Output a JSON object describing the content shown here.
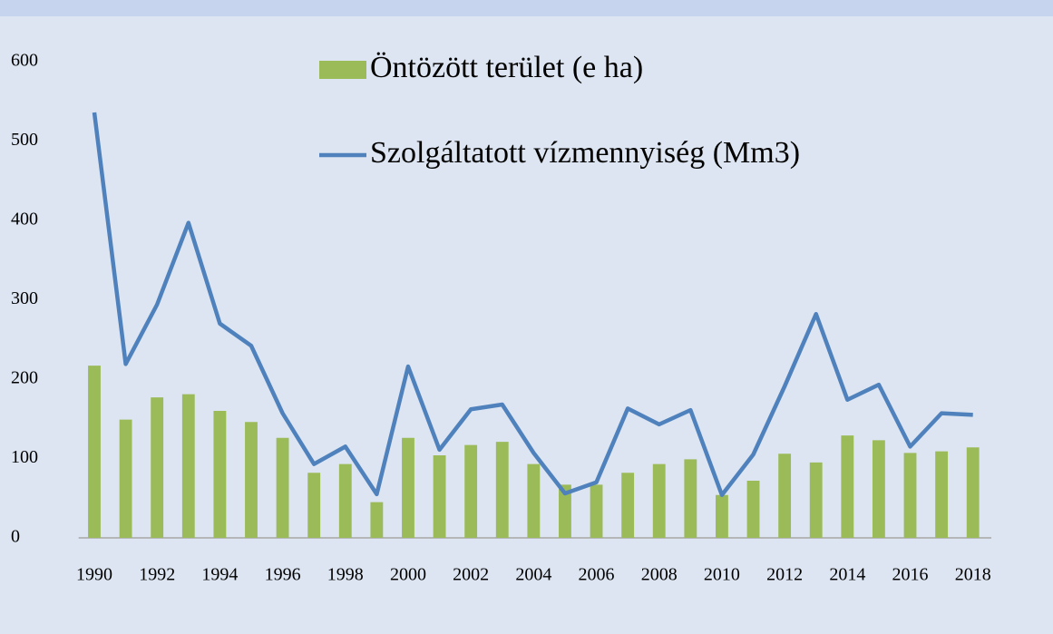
{
  "chart_data": {
    "type": "bar_line",
    "categories": [
      "1990",
      null,
      "1992",
      null,
      "1994",
      null,
      "1996",
      null,
      "1998",
      null,
      "2000",
      null,
      "2002",
      null,
      "2004",
      null,
      "2006",
      null,
      "2008",
      null,
      "2010",
      null,
      "2012",
      null,
      "2014",
      null,
      "2016",
      null,
      "2018"
    ],
    "series": [
      {
        "name": "Öntözött terület (e ha)",
        "type": "bar",
        "color": "#9bbb59",
        "values": [
          217,
          149,
          177,
          181,
          160,
          146,
          126,
          82,
          93,
          45,
          126,
          104,
          117,
          121,
          93,
          67,
          67,
          82,
          93,
          99,
          54,
          72,
          106,
          95,
          129,
          123,
          107,
          109,
          114
        ]
      },
      {
        "name": "Szolgáltatott vízmennyiség (Mm3)",
        "type": "line",
        "color": "#4f81bd",
        "values": [
          536,
          219,
          294,
          397,
          270,
          242,
          157,
          93,
          115,
          55,
          216,
          111,
          162,
          168,
          107,
          56,
          70,
          163,
          143,
          161,
          54,
          105,
          191,
          282,
          174,
          193,
          115,
          157,
          155
        ]
      }
    ],
    "ylim": [
      0,
      600
    ],
    "yticks": [
      0,
      100,
      200,
      300,
      400,
      500,
      600
    ],
    "grid": false
  }
}
